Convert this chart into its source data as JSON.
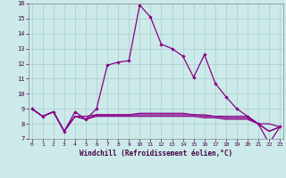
{
  "title": "",
  "xlabel": "Windchill (Refroidissement éolien,°C)",
  "background_color": "#cceaea",
  "grid_color": "#aacccc",
  "line_color": "#880088",
  "hours": [
    0,
    1,
    2,
    3,
    4,
    5,
    6,
    7,
    8,
    9,
    10,
    11,
    12,
    13,
    14,
    15,
    16,
    17,
    18,
    19,
    20,
    21,
    22,
    23
  ],
  "series_main": [
    9.0,
    8.5,
    8.8,
    7.5,
    8.8,
    8.3,
    9.0,
    11.9,
    12.1,
    12.2,
    15.9,
    15.1,
    13.3,
    13.0,
    12.5,
    11.1,
    12.6,
    10.7,
    9.8,
    9.0,
    8.5,
    8.0,
    6.7,
    7.8
  ],
  "series_flat1": [
    9.0,
    8.5,
    8.8,
    7.5,
    8.5,
    8.5,
    8.6,
    8.6,
    8.6,
    8.6,
    8.6,
    8.6,
    8.6,
    8.6,
    8.6,
    8.6,
    8.6,
    8.5,
    8.5,
    8.5,
    8.5,
    8.0,
    8.0,
    7.8
  ],
  "series_flat2": [
    9.0,
    8.5,
    8.8,
    7.5,
    8.5,
    8.3,
    8.5,
    8.5,
    8.5,
    8.5,
    8.5,
    8.5,
    8.5,
    8.5,
    8.5,
    8.5,
    8.4,
    8.4,
    8.3,
    8.3,
    8.3,
    8.0,
    7.5,
    7.8
  ],
  "series_flat3": [
    9.0,
    8.5,
    8.8,
    7.5,
    8.5,
    8.3,
    8.6,
    8.6,
    8.6,
    8.6,
    8.7,
    8.7,
    8.7,
    8.7,
    8.7,
    8.6,
    8.5,
    8.5,
    8.4,
    8.4,
    8.4,
    8.0,
    7.5,
    7.8
  ],
  "ylim_min": 7,
  "ylim_max": 16,
  "yticks": [
    7,
    8,
    9,
    10,
    11,
    12,
    13,
    14,
    15,
    16
  ],
  "xticks": [
    0,
    1,
    2,
    3,
    4,
    5,
    6,
    7,
    8,
    9,
    10,
    11,
    12,
    13,
    14,
    15,
    16,
    17,
    18,
    19,
    20,
    21,
    22,
    23
  ]
}
